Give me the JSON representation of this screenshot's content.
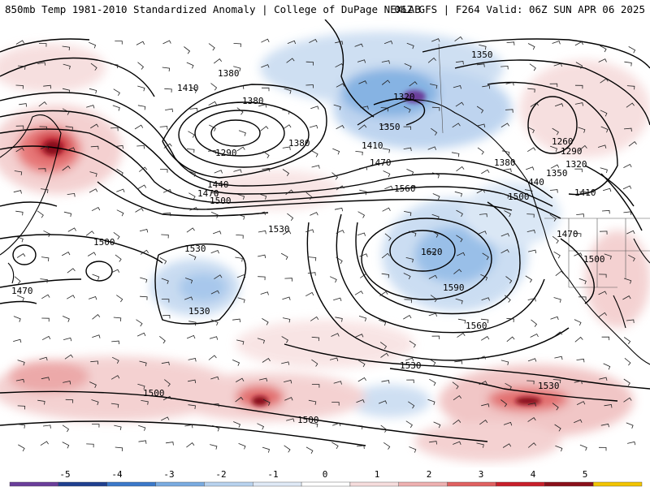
{
  "header": {
    "title_left": "850mb Temp 1981-2010 Standardized Anomaly | College of DuPage NEXLAB",
    "title_right": "06Z GFS | F264 Valid: 06Z SUN APR 06 2025"
  },
  "contours": [
    {
      "label": "1410"
    },
    {
      "label": "1380"
    },
    {
      "label": "1380"
    },
    {
      "label": "1290"
    },
    {
      "label": "1380"
    },
    {
      "label": "1410"
    },
    {
      "label": "1440"
    },
    {
      "label": "1470"
    },
    {
      "label": "1500"
    },
    {
      "label": "1470"
    },
    {
      "label": "1560"
    },
    {
      "label": "1620"
    },
    {
      "label": "1590"
    },
    {
      "label": "1560"
    },
    {
      "label": "1530"
    },
    {
      "label": "1530"
    },
    {
      "label": "1530"
    },
    {
      "label": "1500"
    },
    {
      "label": "1470"
    },
    {
      "label": "1530"
    },
    {
      "label": "1500"
    },
    {
      "label": "1530"
    },
    {
      "label": "1500"
    },
    {
      "label": "1320"
    },
    {
      "label": "1350"
    },
    {
      "label": "1350"
    },
    {
      "label": "1380"
    },
    {
      "label": "1260"
    },
    {
      "label": "1290"
    },
    {
      "label": "1320"
    },
    {
      "label": "1350"
    },
    {
      "label": "440"
    },
    {
      "label": "1410"
    },
    {
      "label": "1470"
    },
    {
      "label": "1500"
    },
    {
      "label": "1500"
    }
  ],
  "colorbar": {
    "ticks": [
      "-5",
      "-4",
      "-3",
      "-2",
      "-1",
      "0",
      "1",
      "2",
      "3",
      "4",
      "5"
    ],
    "colors": [
      "#6a3d9a",
      "#1f3f8f",
      "#3a78c9",
      "#79abe0",
      "#b8d2ee",
      "#dfe9f6",
      "#ffffff",
      "#f6dcdc",
      "#eeb0b0",
      "#e06060",
      "#c81e2a",
      "#8a0f1a",
      "#f2c400"
    ]
  }
}
